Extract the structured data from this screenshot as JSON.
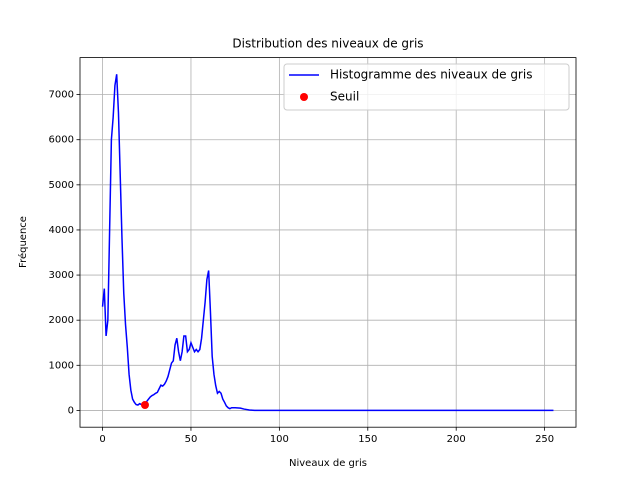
{
  "chart_data": {
    "type": "line",
    "title": "Distribution des niveaux de gris",
    "xlabel": "Niveaux de gris",
    "ylabel": "Fréquence",
    "xlim": [
      -12.75,
      267.75
    ],
    "ylim": [
      -372,
      7820
    ],
    "xticks": [
      0,
      50,
      100,
      150,
      200,
      250
    ],
    "yticks": [
      0,
      1000,
      2000,
      3000,
      4000,
      5000,
      6000,
      7000
    ],
    "grid": true,
    "legend": "upper right",
    "series": [
      {
        "name": "Histogramme des niveaux de gris",
        "color": "#0000ff",
        "style": "line",
        "x": [
          0,
          1,
          2,
          3,
          4,
          5,
          6,
          7,
          8,
          9,
          10,
          11,
          12,
          13,
          14,
          15,
          16,
          17,
          18,
          19,
          20,
          21,
          22,
          23,
          24,
          25,
          26,
          27,
          28,
          29,
          30,
          31,
          32,
          33,
          34,
          35,
          36,
          37,
          38,
          39,
          40,
          41,
          42,
          43,
          44,
          45,
          46,
          47,
          48,
          49,
          50,
          51,
          52,
          53,
          54,
          55,
          56,
          57,
          58,
          59,
          60,
          61,
          62,
          63,
          64,
          65,
          66,
          67,
          68,
          69,
          70,
          71,
          72,
          73,
          75,
          78,
          80,
          83,
          86,
          100,
          150,
          200,
          255
        ],
        "values": [
          2300,
          2700,
          1650,
          2000,
          4000,
          6000,
          6500,
          7200,
          7450,
          6600,
          5200,
          3800,
          2600,
          1900,
          1400,
          800,
          450,
          250,
          180,
          130,
          120,
          150,
          130,
          120,
          140,
          200,
          250,
          300,
          330,
          350,
          380,
          400,
          480,
          560,
          540,
          580,
          650,
          750,
          900,
          1050,
          1100,
          1450,
          1600,
          1300,
          1100,
          1300,
          1650,
          1650,
          1300,
          1350,
          1500,
          1400,
          1300,
          1350,
          1300,
          1350,
          1600,
          2000,
          2400,
          2900,
          3100,
          2200,
          1200,
          800,
          550,
          380,
          420,
          380,
          250,
          180,
          100,
          60,
          40,
          60,
          60,
          50,
          30,
          10,
          0,
          0,
          0,
          0,
          0
        ]
      },
      {
        "name": "Seuil",
        "color": "#ff0000",
        "style": "marker",
        "x": [
          24
        ],
        "values": [
          120
        ]
      }
    ]
  }
}
